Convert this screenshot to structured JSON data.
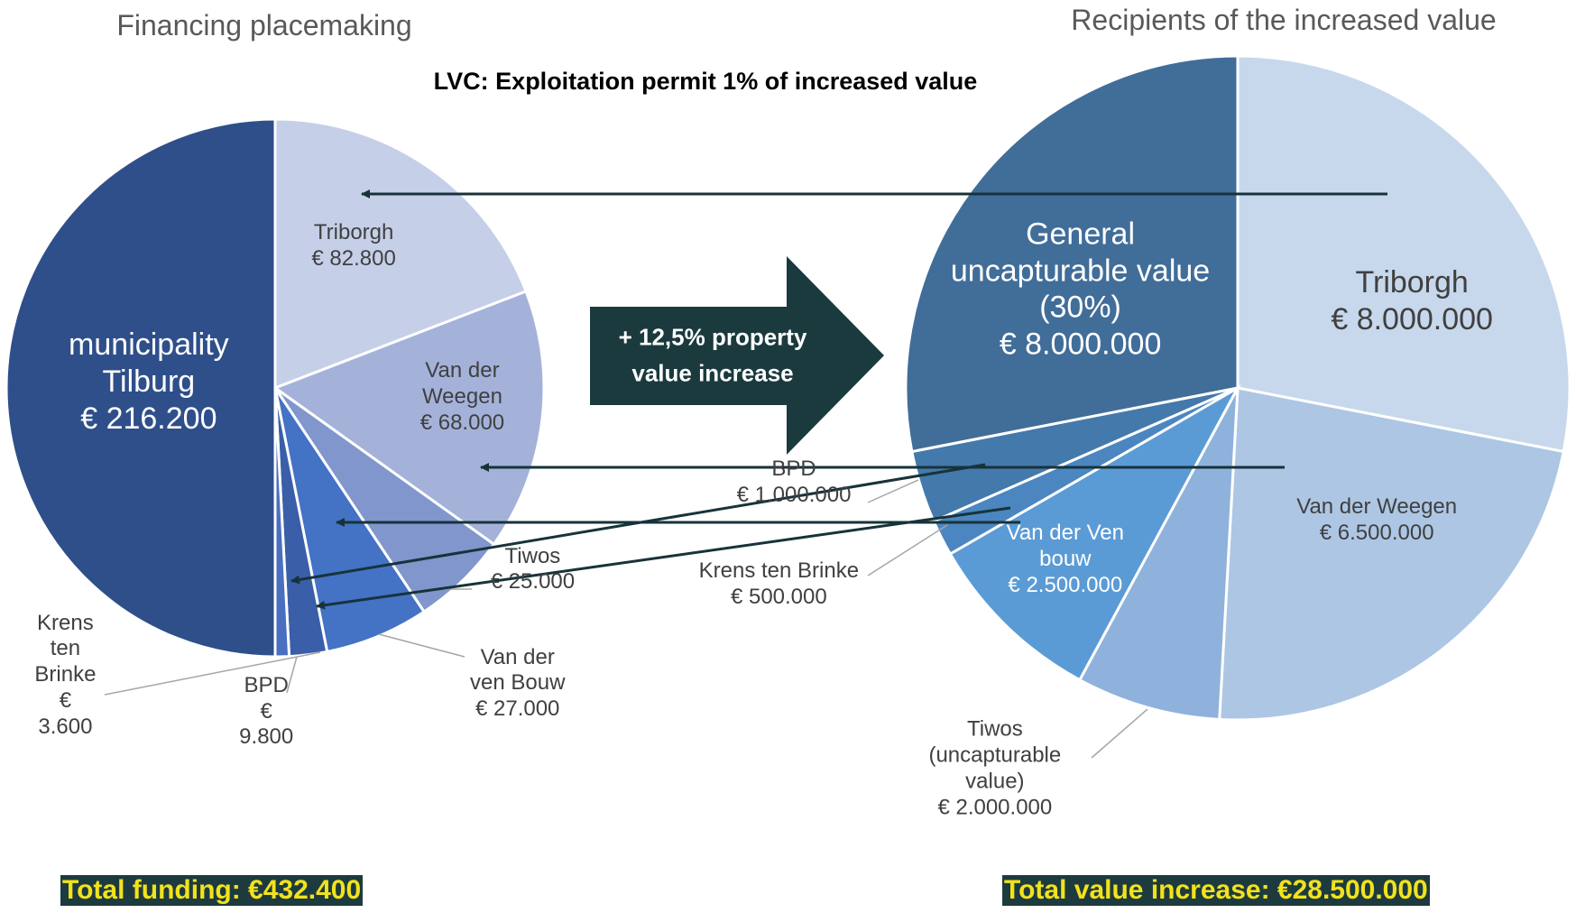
{
  "chart_data": [
    {
      "type": "pie",
      "title": "Financing placemaking",
      "categories": [
        "Triborgh",
        "Van der Weegen",
        "Tiwos",
        "Van der ven Bouw",
        "BPD",
        "Krens ten Brinke",
        "municipality Tilburg"
      ],
      "values": [
        82800,
        68000,
        25000,
        27000,
        9800,
        3600,
        216200
      ],
      "value_labels": [
        "€ 82.800",
        "€ 68.000",
        "€ 25.000",
        "€ 27.000",
        "€ 9.800",
        "€ 3.600",
        "€ 216.200"
      ],
      "colors": [
        "#c5cfe8",
        "#a4b2da",
        "#8096cc",
        "#4472c4",
        "#3a5fa8",
        "#4a6ec0",
        "#2f4f8a"
      ],
      "annotation": "Total funding: €432.400"
    },
    {
      "type": "pie",
      "title": "Recipients of the increased value",
      "categories": [
        "Triborgh",
        "Van der Weegen",
        "Tiwos (uncapturable value)",
        "Van der Ven bouw",
        "Krens ten Brinke",
        "BPD",
        "General uncapturable value (30%)"
      ],
      "values": [
        8000000,
        6500000,
        2000000,
        2500000,
        500000,
        1000000,
        8000000
      ],
      "value_labels": [
        "€ 8.000.000",
        "€ 6.500.000",
        "€ 2.000.000",
        "€ 2.500.000",
        "€ 500.000",
        "€ 1.000.000",
        "€ 8.000.000"
      ],
      "colors": [
        "#c7d8ec",
        "#adc6e4",
        "#8eb2dc",
        "#5b9bd5",
        "#4b86c0",
        "#4479ab",
        "#416d99"
      ],
      "annotation": "Total value increase: €28.500.000"
    }
  ],
  "annotations": [
    "LVC: Exploitation permit 1% of increased value",
    "+ 12,5% property value increase"
  ]
}
